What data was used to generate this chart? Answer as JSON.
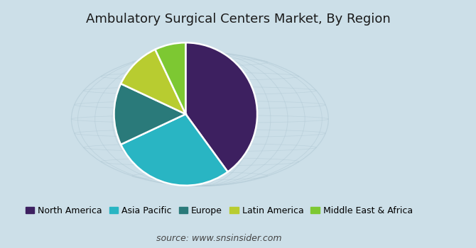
{
  "title": "Ambulatory Surgical Centers Market, By Region",
  "source": "source: www.snsinsider.com",
  "slices": [
    {
      "label": "North America",
      "value": 40,
      "color": "#3d2060"
    },
    {
      "label": "Asia Pacific",
      "value": 28,
      "color": "#29b5c3"
    },
    {
      "label": "Europe",
      "value": 14,
      "color": "#2a7a7a"
    },
    {
      "label": "Latin America",
      "value": 11,
      "color": "#b8cc30"
    },
    {
      "label": "Middle East & Africa",
      "value": 7,
      "color": "#7dc832"
    }
  ],
  "background_color": "#ccdfe8",
  "title_fontsize": 13,
  "source_fontsize": 9,
  "legend_fontsize": 9,
  "startangle": 90,
  "figsize": [
    6.7,
    3.5
  ],
  "dpi": 100,
  "globe_color": "#b0c8d4",
  "globe_alpha": 0.55
}
